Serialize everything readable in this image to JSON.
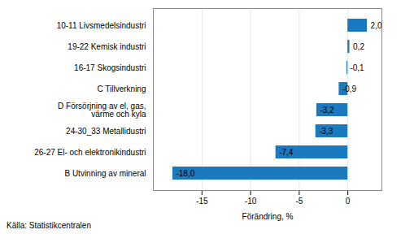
{
  "chart_data": {
    "type": "bar",
    "orientation": "horizontal",
    "categories": [
      "B Utvinning av mineral",
      "26-27 El- och elektronikindustri",
      "24-30_33 Metallidustri",
      "D Försörjning av el, gas,\nvärme och kyla",
      "C Tillverkning",
      "16-17 Skogsindustri",
      "19-22 Kemisk industri",
      "10-11 Livsmedelsindustri"
    ],
    "values": [
      -18.0,
      -7.4,
      -3.3,
      -3.2,
      -0.9,
      -0.1,
      0.2,
      2.0
    ],
    "value_labels": [
      "-18,0",
      "-7,4",
      "-3,3",
      "-3,2",
      "-0,9",
      "-0,1",
      "0,2",
      "2,0"
    ],
    "data_labels": true,
    "color": "#1a7abf",
    "xlabel": "Förändring, %",
    "xlim": [
      -20,
      3.5
    ],
    "xticks": [
      -15,
      -10,
      -5,
      0
    ],
    "grid": true,
    "annotations": [
      "Källa: Statistikcentralen"
    ]
  }
}
